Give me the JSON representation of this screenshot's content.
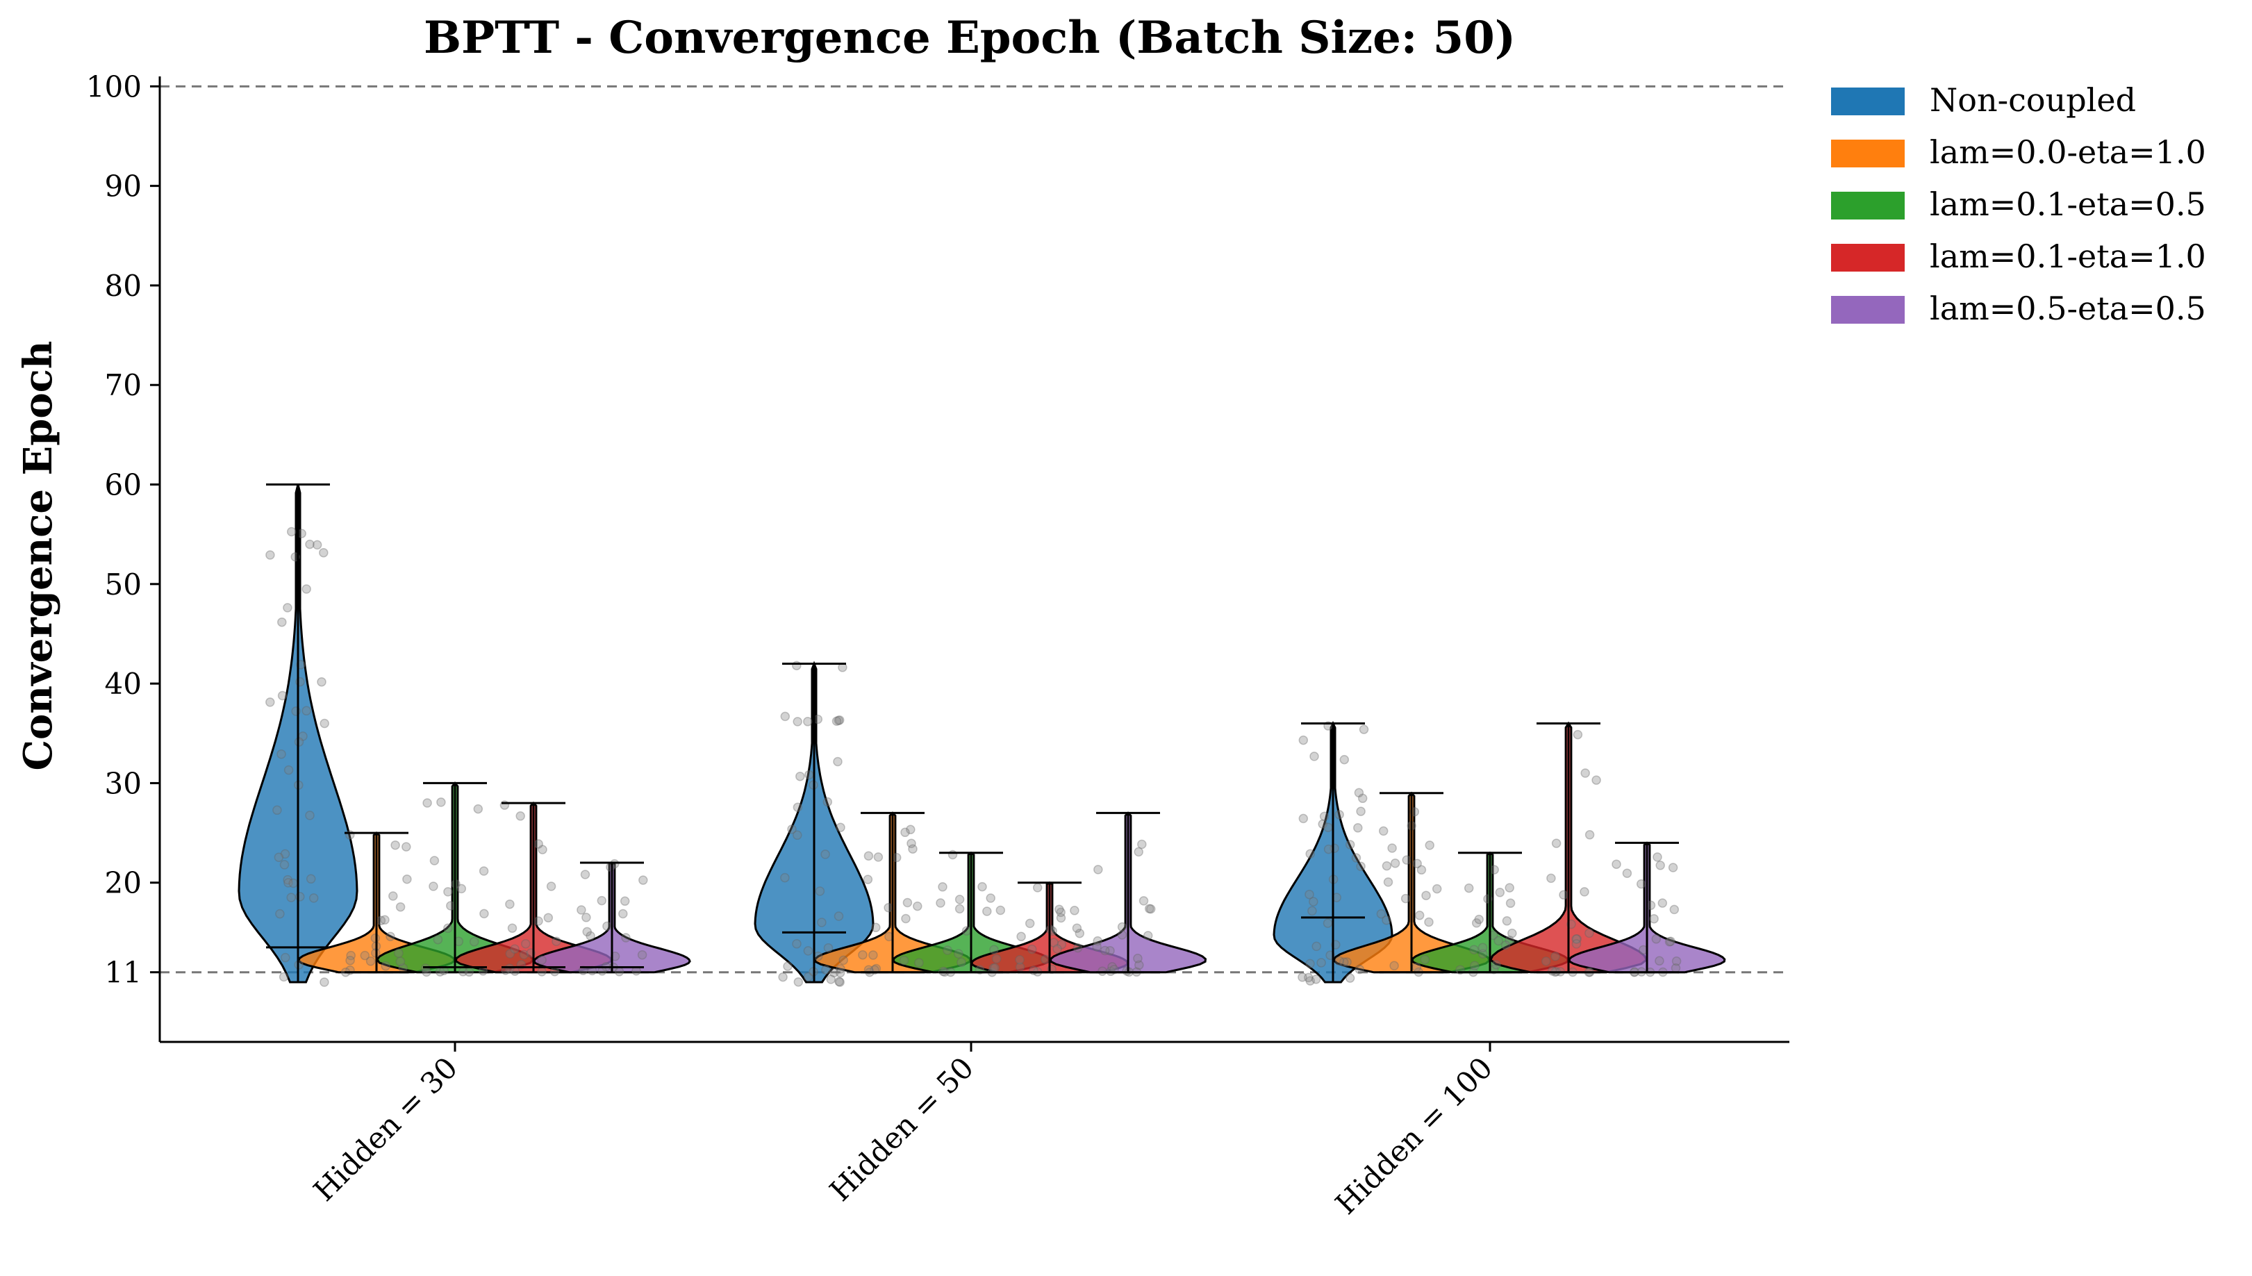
{
  "chart_data": {
    "type": "violin",
    "title": "BPTT - Convergence Epoch (Batch Size: 50)",
    "xlabel": "",
    "ylabel": "Convergence Epoch",
    "ylim": [
      4,
      101
    ],
    "yticks": [
      11,
      20,
      30,
      40,
      50,
      60,
      70,
      80,
      90,
      100
    ],
    "reference_lines": [
      11,
      100
    ],
    "grid": false,
    "legend_position": "outside-right-top",
    "categories": [
      "Hidden = 30",
      "Hidden = 50",
      "Hidden = 100"
    ],
    "series": [
      {
        "name": "Non-coupled",
        "color": "#1f77b4",
        "stats": [
          {
            "min": 10,
            "max": 60,
            "median": 13.5
          },
          {
            "min": 10,
            "max": 42,
            "median": 15
          },
          {
            "min": 10,
            "max": 36,
            "median": 16.5
          }
        ]
      },
      {
        "name": "lam=0.0-eta=1.0",
        "color": "#ff7f0e",
        "stats": [
          {
            "min": 11,
            "max": 25,
            "median": 11
          },
          {
            "min": 11,
            "max": 27,
            "median": 11
          },
          {
            "min": 11,
            "max": 29,
            "median": 11
          }
        ]
      },
      {
        "name": "lam=0.1-eta=0.5",
        "color": "#2ca02c",
        "stats": [
          {
            "min": 11,
            "max": 30,
            "median": 11.5
          },
          {
            "min": 11,
            "max": 23,
            "median": 11
          },
          {
            "min": 11,
            "max": 23,
            "median": 11
          }
        ]
      },
      {
        "name": "lam=0.1-eta=1.0",
        "color": "#d62728",
        "stats": [
          {
            "min": 11,
            "max": 28,
            "median": 11.5
          },
          {
            "min": 11,
            "max": 20,
            "median": 11
          },
          {
            "min": 11,
            "max": 36,
            "median": 11
          }
        ]
      },
      {
        "name": "lam=0.5-eta=0.5",
        "color": "#9467bd",
        "stats": [
          {
            "min": 11,
            "max": 22,
            "median": 11.5
          },
          {
            "min": 11,
            "max": 27,
            "median": 11
          },
          {
            "min": 11,
            "max": 24,
            "median": 11
          }
        ]
      }
    ]
  }
}
